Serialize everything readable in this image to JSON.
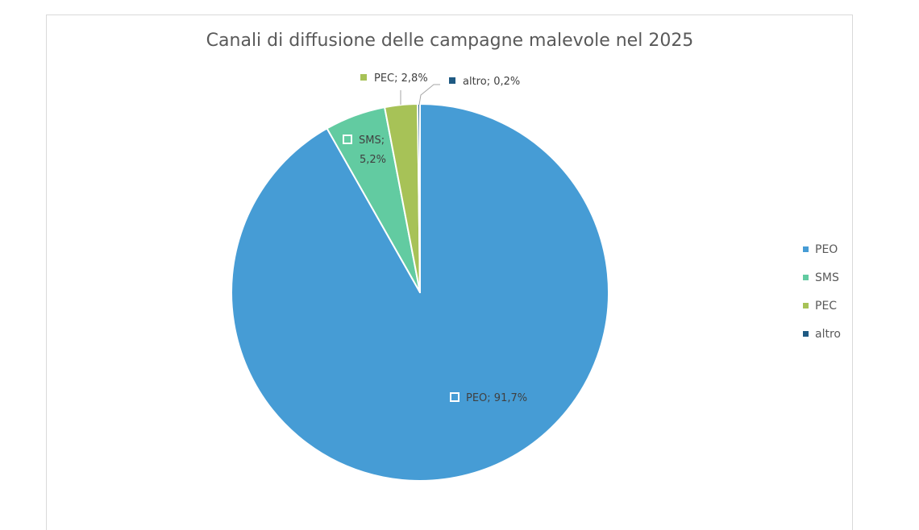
{
  "chart_data": {
    "type": "pie",
    "title": "Canali di diffusione delle campagne malevole nel 2025",
    "categories": [
      "PEO",
      "SMS",
      "PEC",
      "altro"
    ],
    "values": [
      91.7,
      5.2,
      2.8,
      0.2
    ],
    "value_labels": [
      "PEO; 91,7%",
      "SMS; 5,2%",
      "PEC; 2,8%",
      "altro; 0,2%"
    ],
    "colors": [
      "#469cd5",
      "#62cba1",
      "#a7c257",
      "#1f5a83"
    ],
    "legend_position": "right",
    "start_angle": "12 o'clock",
    "direction": "clockwise"
  },
  "legend": {
    "items": [
      {
        "label": "PEO",
        "color": "#469cd5"
      },
      {
        "label": "SMS",
        "color": "#62cba1"
      },
      {
        "label": "PEC",
        "color": "#a7c257"
      },
      {
        "label": "altro",
        "color": "#1f5a83"
      }
    ]
  },
  "labels": {
    "peo": "PEO; 91,7%",
    "sms_line1": "SMS;",
    "sms_line2": "5,2%",
    "pec": "PEC; 2,8%",
    "altro": "altro; 0,2%"
  }
}
